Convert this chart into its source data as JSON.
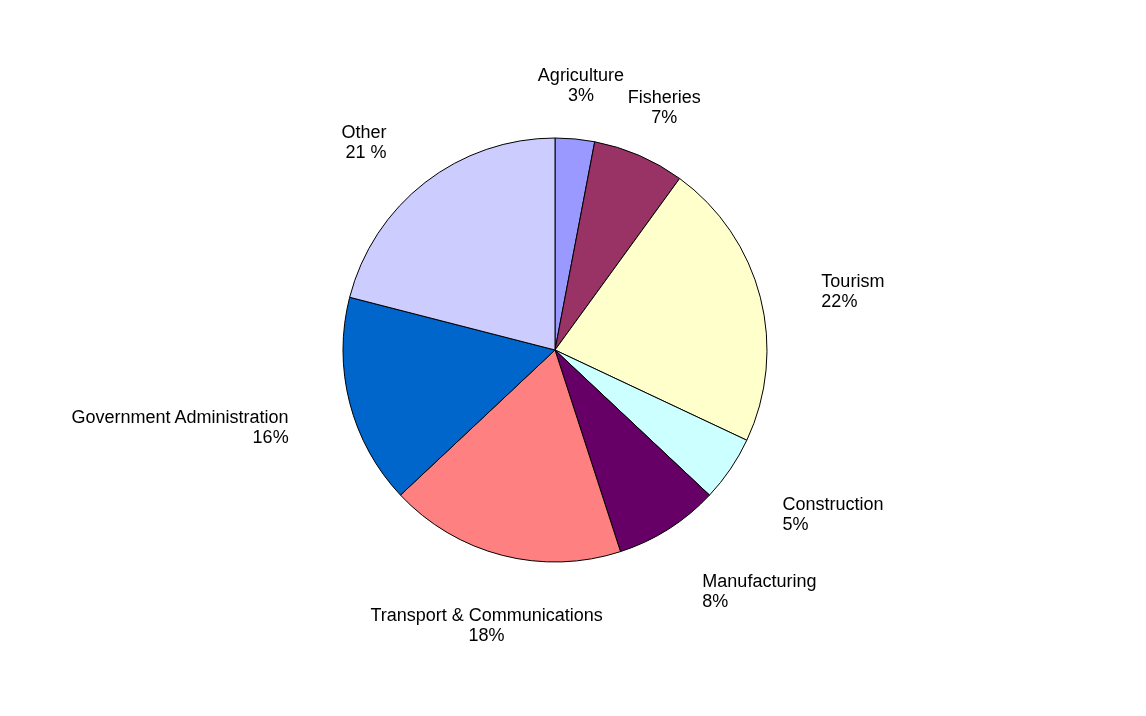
{
  "chart_data": {
    "type": "pie",
    "categories": [
      "Agriculture",
      "Fisheries",
      "Tourism",
      "Construction",
      "Manufacturing",
      "Transport & Communications",
      "Government Administration",
      "Other"
    ],
    "values": [
      3,
      7,
      22,
      5,
      8,
      18,
      16,
      21
    ],
    "value_labels": [
      "3%",
      "7%",
      "22%",
      "5%",
      "8%",
      "18%",
      "16%",
      "21 %"
    ],
    "colors": [
      "#9999ff",
      "#993366",
      "#ffffcc",
      "#ccffff",
      "#660066",
      "#ff8080",
      "#0066cc",
      "#ccccff"
    ],
    "legend": false
  }
}
